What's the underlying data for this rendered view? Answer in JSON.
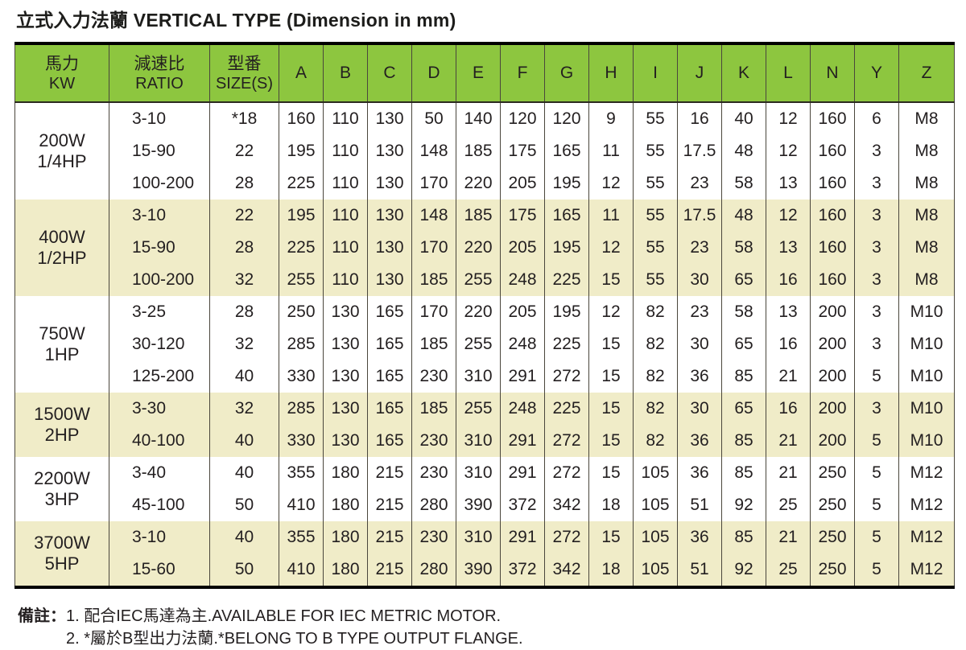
{
  "title": "立式入力法蘭 VERTICAL TYPE (Dimension in mm)",
  "colors": {
    "header_green": "#8dc63f",
    "row_cream": "#f0ecc8",
    "row_white": "#ffffff",
    "text": "#231f20"
  },
  "table": {
    "header": {
      "col1_zh": "馬力",
      "col1_en": "KW",
      "col2_zh": "減速比",
      "col2_en": "RATIO",
      "col3_zh": "型番",
      "col3_en": "SIZE(S)",
      "dim_letters": [
        "A",
        "B",
        "C",
        "D",
        "E",
        "F",
        "G",
        "H",
        "I",
        "J",
        "K",
        "L",
        "N",
        "Y",
        "Z"
      ]
    },
    "groups": [
      {
        "power_w": "200W",
        "power_hp": "1/4HP",
        "shade": "white",
        "rows": [
          {
            "ratio": "3-10",
            "size": "*18",
            "dims": [
              "160",
              "110",
              "130",
              "50",
              "140",
              "120",
              "120",
              "9",
              "55",
              "16",
              "40",
              "12",
              "160",
              "6",
              "M8"
            ]
          },
          {
            "ratio": "15-90",
            "size": "22",
            "dims": [
              "195",
              "110",
              "130",
              "148",
              "185",
              "175",
              "165",
              "11",
              "55",
              "17.5",
              "48",
              "12",
              "160",
              "3",
              "M8"
            ]
          },
          {
            "ratio": "100-200",
            "size": "28",
            "dims": [
              "225",
              "110",
              "130",
              "170",
              "220",
              "205",
              "195",
              "12",
              "55",
              "23",
              "58",
              "13",
              "160",
              "3",
              "M8"
            ]
          }
        ]
      },
      {
        "power_w": "400W",
        "power_hp": "1/2HP",
        "shade": "cream",
        "rows": [
          {
            "ratio": "3-10",
            "size": "22",
            "dims": [
              "195",
              "110",
              "130",
              "148",
              "185",
              "175",
              "165",
              "11",
              "55",
              "17.5",
              "48",
              "12",
              "160",
              "3",
              "M8"
            ]
          },
          {
            "ratio": "15-90",
            "size": "28",
            "dims": [
              "225",
              "110",
              "130",
              "170",
              "220",
              "205",
              "195",
              "12",
              "55",
              "23",
              "58",
              "13",
              "160",
              "3",
              "M8"
            ]
          },
          {
            "ratio": "100-200",
            "size": "32",
            "dims": [
              "255",
              "110",
              "130",
              "185",
              "255",
              "248",
              "225",
              "15",
              "55",
              "30",
              "65",
              "16",
              "160",
              "3",
              "M8"
            ]
          }
        ]
      },
      {
        "power_w": "750W",
        "power_hp": "1HP",
        "shade": "white",
        "rows": [
          {
            "ratio": "3-25",
            "size": "28",
            "dims": [
              "250",
              "130",
              "165",
              "170",
              "220",
              "205",
              "195",
              "12",
              "82",
              "23",
              "58",
              "13",
              "200",
              "3",
              "M10"
            ]
          },
          {
            "ratio": "30-120",
            "size": "32",
            "dims": [
              "285",
              "130",
              "165",
              "185",
              "255",
              "248",
              "225",
              "15",
              "82",
              "30",
              "65",
              "16",
              "200",
              "3",
              "M10"
            ]
          },
          {
            "ratio": "125-200",
            "size": "40",
            "dims": [
              "330",
              "130",
              "165",
              "230",
              "310",
              "291",
              "272",
              "15",
              "82",
              "36",
              "85",
              "21",
              "200",
              "5",
              "M10"
            ]
          }
        ]
      },
      {
        "power_w": "1500W",
        "power_hp": "2HP",
        "shade": "cream",
        "rows": [
          {
            "ratio": "3-30",
            "size": "32",
            "dims": [
              "285",
              "130",
              "165",
              "185",
              "255",
              "248",
              "225",
              "15",
              "82",
              "30",
              "65",
              "16",
              "200",
              "3",
              "M10"
            ]
          },
          {
            "ratio": "40-100",
            "size": "40",
            "dims": [
              "330",
              "130",
              "165",
              "230",
              "310",
              "291",
              "272",
              "15",
              "82",
              "36",
              "85",
              "21",
              "200",
              "5",
              "M10"
            ]
          }
        ]
      },
      {
        "power_w": "2200W",
        "power_hp": "3HP",
        "shade": "white",
        "rows": [
          {
            "ratio": "3-40",
            "size": "40",
            "dims": [
              "355",
              "180",
              "215",
              "230",
              "310",
              "291",
              "272",
              "15",
              "105",
              "36",
              "85",
              "21",
              "250",
              "5",
              "M12"
            ]
          },
          {
            "ratio": "45-100",
            "size": "50",
            "dims": [
              "410",
              "180",
              "215",
              "280",
              "390",
              "372",
              "342",
              "18",
              "105",
              "51",
              "92",
              "25",
              "250",
              "5",
              "M12"
            ]
          }
        ]
      },
      {
        "power_w": "3700W",
        "power_hp": "5HP",
        "shade": "cream",
        "rows": [
          {
            "ratio": "3-10",
            "size": "40",
            "dims": [
              "355",
              "180",
              "215",
              "230",
              "310",
              "291",
              "272",
              "15",
              "105",
              "36",
              "85",
              "21",
              "250",
              "5",
              "M12"
            ]
          },
          {
            "ratio": "15-60",
            "size": "50",
            "dims": [
              "410",
              "180",
              "215",
              "280",
              "390",
              "372",
              "342",
              "18",
              "105",
              "51",
              "92",
              "25",
              "250",
              "5",
              "M12"
            ]
          }
        ]
      }
    ]
  },
  "notes": {
    "label": "備註：",
    "items": [
      "1. 配合IEC馬達為主.AVAILABLE FOR IEC METRIC MOTOR.",
      "2. *屬於B型出力法蘭.*BELONG TO B TYPE OUTPUT FLANGE."
    ]
  }
}
